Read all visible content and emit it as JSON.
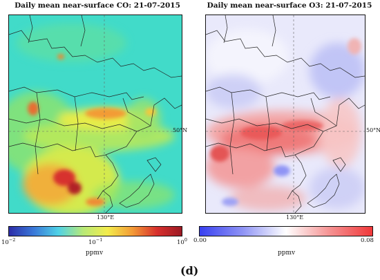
{
  "figure_label": "(d)",
  "co_map": {
    "title": "Daily mean near-surface CO: 21-07-2015",
    "lon_label": "130°E",
    "lat_label": "50°N",
    "colorbar": {
      "unit": "ppmv",
      "ticks": [
        {
          "base": "10",
          "exp": "−2"
        },
        {
          "base": "10",
          "exp": "−1"
        },
        {
          "base": "10",
          "exp": "0"
        }
      ],
      "colors": [
        "#2c2da8",
        "#3a78d8",
        "#4fd1e6",
        "#b7e978",
        "#f3ec4c",
        "#f39b36",
        "#d7302d",
        "#9c1a24"
      ]
    }
  },
  "o3_map": {
    "title": "Daily mean near-surface O3: 21-07-2015",
    "lon_label": "130°E",
    "lat_label": "50°N",
    "colorbar": {
      "unit": "ppmv",
      "tick_min": "0.00",
      "tick_max": "0.08",
      "colors": [
        "#3840f0",
        "#8f94f5",
        "#ffffff",
        "#f59393",
        "#f0383a"
      ]
    }
  }
}
